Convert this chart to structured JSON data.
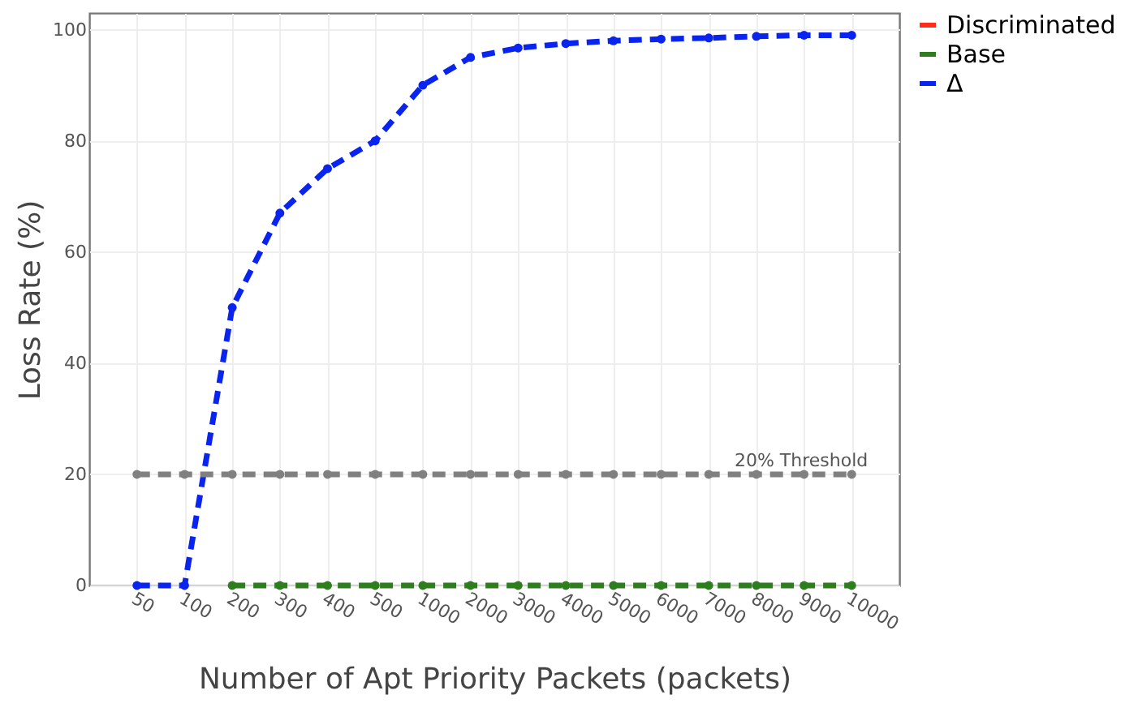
{
  "chart_data": {
    "type": "line",
    "xlabel": "Number of Apt Priority Packets (packets)",
    "ylabel": "Loss Rate (%)",
    "categories": [
      "50",
      "100",
      "200",
      "300",
      "400",
      "500",
      "1000",
      "2000",
      "3000",
      "4000",
      "5000",
      "6000",
      "7000",
      "8000",
      "9000",
      "10000"
    ],
    "series": [
      {
        "name": "Discriminated",
        "color": "#ff2a1a",
        "values": [
          null,
          null,
          null,
          null,
          null,
          null,
          null,
          null,
          null,
          null,
          null,
          null,
          null,
          null,
          null,
          null
        ]
      },
      {
        "name": "Base",
        "color": "#2e7d1e",
        "values": [
          null,
          null,
          0,
          0,
          0,
          0,
          0,
          0,
          0,
          0,
          0,
          0,
          0,
          0,
          0,
          0
        ]
      },
      {
        "name": "Δ",
        "color": "#0a24f0",
        "values": [
          0,
          0,
          50,
          67,
          75,
          80,
          90,
          95,
          96.7,
          97.5,
          98,
          98.3,
          98.5,
          98.8,
          99,
          99
        ]
      },
      {
        "color": "#808080",
        "values": [
          20,
          20,
          20,
          20,
          20,
          20,
          20,
          20,
          20,
          20,
          20,
          20,
          20,
          20,
          20,
          20
        ]
      }
    ],
    "annotations": [
      {
        "text": "20% Threshold",
        "x": "10000",
        "y": 20
      }
    ],
    "ylim": [
      0,
      103
    ],
    "yticks": [
      0,
      20,
      40,
      60,
      80,
      100
    ],
    "grid": true,
    "legend": "right",
    "marker": "circle",
    "line_style": "dashed"
  }
}
